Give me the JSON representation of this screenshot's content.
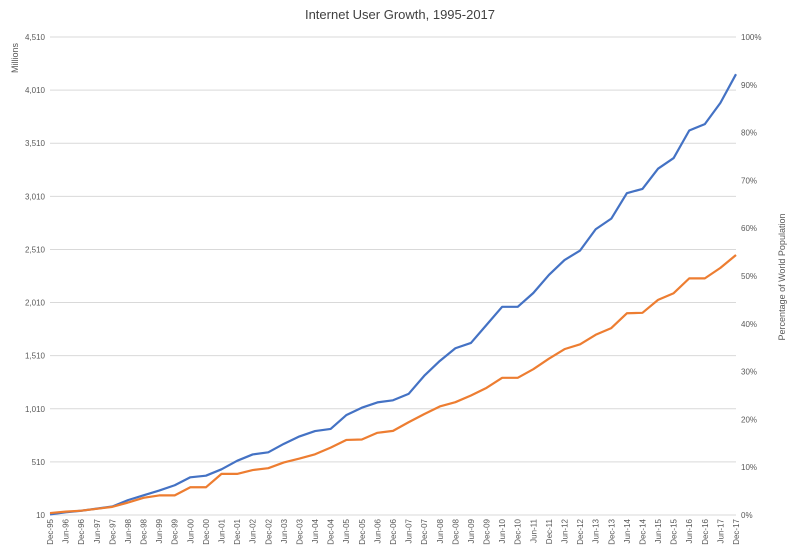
{
  "chart_data": {
    "type": "line",
    "title": "Internet User Growth, 1995-2017",
    "ylabel": "Millions",
    "y2label": "Percentage of World Population",
    "ylim": [
      10,
      4510
    ],
    "y_ticks": [
      "10",
      "510",
      "1,010",
      "1,510",
      "2,010",
      "2,510",
      "3,010",
      "3,510",
      "4,010",
      "4,510"
    ],
    "y2lim": [
      0,
      100
    ],
    "y2_ticks": [
      "0%",
      "10%",
      "20%",
      "30%",
      "40%",
      "50%",
      "60%",
      "70%",
      "80%",
      "90%",
      "100%"
    ],
    "x_ticks": [
      "Dec-95",
      "Jun-96",
      "Dec-96",
      "Jun-97",
      "Dec-97",
      "Jun-98",
      "Dec-98",
      "Jun-99",
      "Dec-99",
      "Jun-00",
      "Dec-00",
      "Jun-01",
      "Dec-01",
      "Jun-02",
      "Dec-02",
      "Jun-03",
      "Dec-03",
      "Jun-04",
      "Dec-04",
      "Jun-05",
      "Dec-05",
      "Jun-06",
      "Dec-06",
      "Jun-07",
      "Dec-07",
      "Jun-08",
      "Dec-08",
      "Jun-09",
      "Dec-09",
      "Jun-10",
      "Dec-10",
      "Jun-11",
      "Dec-11",
      "Jun-12",
      "Dec-12",
      "Jun-13",
      "Dec-13",
      "Jun-14",
      "Dec-14",
      "Jun-15",
      "Dec-15",
      "Jun-16",
      "Dec-16",
      "Jun-17",
      "Dec-17"
    ],
    "grid": true,
    "legend": "none",
    "series": [
      {
        "axis": "left",
        "color": "#4472c4",
        "points": [
          [
            "Dec-95",
            16
          ],
          [
            "Jun-96",
            36
          ],
          [
            "Dec-96",
            50
          ],
          [
            "Jun-97",
            70
          ],
          [
            "Dec-97",
            90
          ],
          [
            "Jun-98",
            150
          ],
          [
            "Dec-98",
            195
          ],
          [
            "Jun-99",
            240
          ],
          [
            "Dec-99",
            290
          ],
          [
            "Jun-00",
            365
          ],
          [
            "Dec-00",
            380
          ],
          [
            "Jun-01",
            440
          ],
          [
            "Dec-01",
            520
          ],
          [
            "Jun-02",
            580
          ],
          [
            "Dec-02",
            600
          ],
          [
            "Jun-03",
            680
          ],
          [
            "Dec-03",
            750
          ],
          [
            "Jun-04",
            800
          ],
          [
            "Dec-04",
            820
          ],
          [
            "Jun-05",
            950
          ],
          [
            "Dec-05",
            1020
          ],
          [
            "Jun-06",
            1070
          ],
          [
            "Dec-06",
            1090
          ],
          [
            "Jun-07",
            1150
          ],
          [
            "Dec-07",
            1320
          ],
          [
            "Jun-08",
            1460
          ],
          [
            "Dec-08",
            1580
          ],
          [
            "Jun-09",
            1630
          ],
          [
            "Dec-09",
            1800
          ],
          [
            "Jun-10",
            1970
          ],
          [
            "Dec-10",
            1970
          ],
          [
            "Jun-11",
            2100
          ],
          [
            "Dec-11",
            2270
          ],
          [
            "Jun-12",
            2410
          ],
          [
            "Dec-12",
            2500
          ],
          [
            "Jun-13",
            2700
          ],
          [
            "Dec-13",
            2800
          ],
          [
            "Jun-14",
            3040
          ],
          [
            "Dec-14",
            3080
          ],
          [
            "Jun-15",
            3270
          ],
          [
            "Dec-15",
            3370
          ],
          [
            "Jun-16",
            3630
          ],
          [
            "Dec-16",
            3690
          ],
          [
            "Jun-17",
            3890
          ],
          [
            "Dec-17",
            4160
          ]
        ]
      },
      {
        "axis": "right",
        "color": "#ed7d31",
        "points": [
          [
            "Dec-95",
            0.4
          ],
          [
            "Jun-96",
            0.7
          ],
          [
            "Dec-96",
            0.9
          ],
          [
            "Jun-97",
            1.3
          ],
          [
            "Dec-97",
            1.7
          ],
          [
            "Jun-98",
            2.6
          ],
          [
            "Dec-98",
            3.6
          ],
          [
            "Jun-99",
            4.1
          ],
          [
            "Dec-99",
            4.1
          ],
          [
            "Jun-00",
            5.8
          ],
          [
            "Dec-00",
            5.8
          ],
          [
            "Jun-01",
            8.6
          ],
          [
            "Dec-01",
            8.6
          ],
          [
            "Jun-02",
            9.4
          ],
          [
            "Dec-02",
            9.8
          ],
          [
            "Jun-03",
            11.0
          ],
          [
            "Dec-03",
            11.8
          ],
          [
            "Jun-04",
            12.7
          ],
          [
            "Dec-04",
            14.1
          ],
          [
            "Jun-05",
            15.7
          ],
          [
            "Dec-05",
            15.8
          ],
          [
            "Jun-06",
            17.2
          ],
          [
            "Dec-06",
            17.6
          ],
          [
            "Jun-07",
            19.4
          ],
          [
            "Dec-07",
            21.1
          ],
          [
            "Jun-08",
            22.7
          ],
          [
            "Dec-08",
            23.6
          ],
          [
            "Jun-09",
            25.0
          ],
          [
            "Dec-09",
            26.6
          ],
          [
            "Jun-10",
            28.7
          ],
          [
            "Dec-10",
            28.7
          ],
          [
            "Jun-11",
            30.5
          ],
          [
            "Dec-11",
            32.7
          ],
          [
            "Jun-12",
            34.7
          ],
          [
            "Dec-12",
            35.7
          ],
          [
            "Jun-13",
            37.7
          ],
          [
            "Dec-13",
            39.1
          ],
          [
            "Jun-14",
            42.2
          ],
          [
            "Dec-14",
            42.3
          ],
          [
            "Jun-15",
            45.0
          ],
          [
            "Dec-15",
            46.4
          ],
          [
            "Jun-16",
            49.5
          ],
          [
            "Dec-16",
            49.5
          ],
          [
            "Jun-17",
            51.7
          ],
          [
            "Dec-17",
            54.4
          ]
        ]
      }
    ]
  }
}
